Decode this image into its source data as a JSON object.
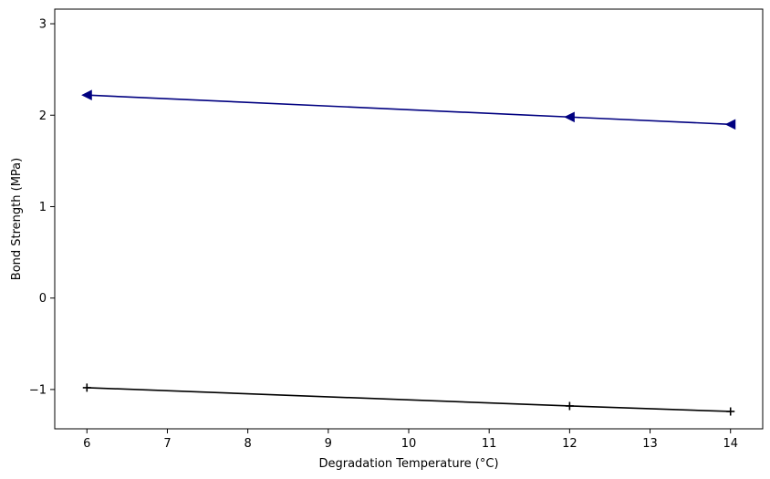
{
  "chart_data": {
    "type": "line",
    "title": "",
    "xlabel": "Degradation Temperature (°C)",
    "ylabel": "Bond Strength (MPa)",
    "xlim": [
      5.6,
      14.4
    ],
    "ylim": [
      -1.43,
      3.16
    ],
    "xticks": [
      6,
      7,
      8,
      9,
      10,
      11,
      12,
      13,
      14
    ],
    "yticks": [
      -1,
      0,
      1,
      2,
      3
    ],
    "ytick_labels": [
      "−1",
      "0",
      "1",
      "2",
      "3"
    ],
    "grid": false,
    "series": [
      {
        "x": [
          6,
          12,
          14
        ],
        "values": [
          2.22,
          1.98,
          1.9
        ],
        "color": "#000080",
        "marker": "triangle-left"
      },
      {
        "x": [
          6,
          12,
          14
        ],
        "values": [
          -0.98,
          -1.18,
          -1.24
        ],
        "color": "#000000",
        "marker": "plus"
      }
    ]
  }
}
